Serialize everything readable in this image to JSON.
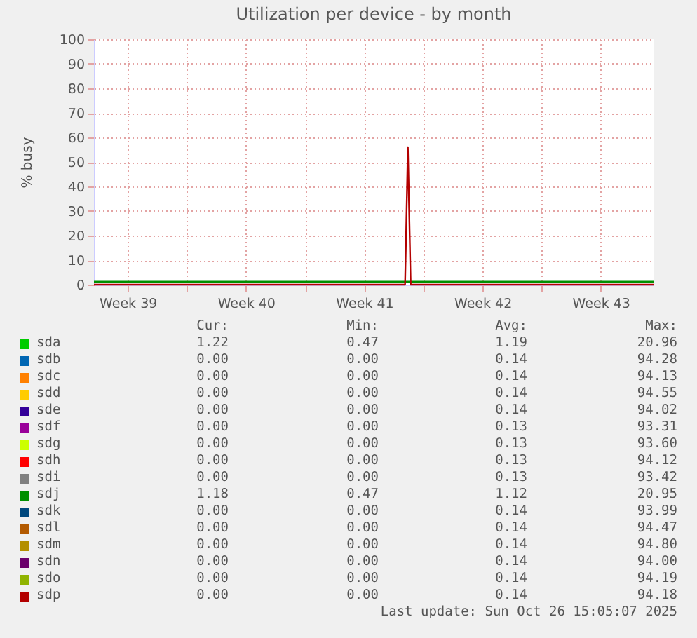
{
  "chart_data": {
    "type": "line",
    "title": "Utilization per device - by month",
    "ylabel": "% busy",
    "x": [
      "2025-09-23T12:00",
      "2025-10-11T22:00",
      "2025-10-12T02:00",
      "2025-10-12T06:00",
      "2025-10-26T15:00"
    ],
    "xlim": [
      "2025-09-23T12:00",
      "2025-10-26T15:00"
    ],
    "xticks": [
      {
        "value": "2025-09-25T12:00",
        "label": "Week 39"
      },
      {
        "value": "2025-09-29T00:00",
        "label": null
      },
      {
        "value": "2025-10-02T12:00",
        "label": "Week 40"
      },
      {
        "value": "2025-10-06T00:00",
        "label": null
      },
      {
        "value": "2025-10-09T12:00",
        "label": "Week 41"
      },
      {
        "value": "2025-10-13T00:00",
        "label": null
      },
      {
        "value": "2025-10-16T12:00",
        "label": "Week 42"
      },
      {
        "value": "2025-10-20T00:00",
        "label": null
      },
      {
        "value": "2025-10-23T12:00",
        "label": "Week 43"
      }
    ],
    "ylim": [
      0,
      100
    ],
    "yticks": [
      0,
      10,
      20,
      30,
      40,
      50,
      60,
      70,
      80,
      90,
      100
    ],
    "grid": true,
    "legend": "bottom",
    "line_style": "solid",
    "series": [
      {
        "name": "sda",
        "color": "#00cc00",
        "values": [
          null,
          null,
          null,
          null,
          null
        ]
      },
      {
        "name": "sdb",
        "color": "#0066b3",
        "values": [
          null,
          null,
          null,
          null,
          null
        ]
      },
      {
        "name": "sdc",
        "color": "#ff8000",
        "values": [
          null,
          null,
          null,
          null,
          null
        ]
      },
      {
        "name": "sdd",
        "color": "#ffcc00",
        "values": [
          null,
          null,
          null,
          null,
          null
        ]
      },
      {
        "name": "sde",
        "color": "#330099",
        "values": [
          null,
          null,
          null,
          null,
          null
        ]
      },
      {
        "name": "sdf",
        "color": "#990099",
        "values": [
          null,
          null,
          null,
          null,
          null
        ]
      },
      {
        "name": "sdg",
        "color": "#ccff00",
        "values": [
          null,
          null,
          null,
          null,
          null
        ]
      },
      {
        "name": "sdh",
        "color": "#ff0000",
        "values": [
          null,
          null,
          null,
          null,
          null
        ]
      },
      {
        "name": "sdi",
        "color": "#808080",
        "values": [
          null,
          null,
          null,
          null,
          null
        ]
      },
      {
        "name": "sdj",
        "color": "#008f00",
        "x": [
          "2025-09-23T12:00",
          "2025-10-26T15:00"
        ],
        "values": [
          1.2,
          1.2
        ]
      },
      {
        "name": "sdk",
        "color": "#00487d",
        "values": [
          null,
          null,
          null,
          null,
          null
        ]
      },
      {
        "name": "sdl",
        "color": "#b35a00",
        "values": [
          null,
          null,
          null,
          null,
          null
        ]
      },
      {
        "name": "sdm",
        "color": "#b38f00",
        "values": [
          null,
          null,
          null,
          null,
          null
        ]
      },
      {
        "name": "sdn",
        "color": "#6b006b",
        "values": [
          null,
          null,
          null,
          null,
          null
        ]
      },
      {
        "name": "sdo",
        "color": "#8fb300",
        "values": [
          null,
          null,
          null,
          null,
          null
        ]
      },
      {
        "name": "sdp",
        "color": "#b30000",
        "values": [
          0,
          0,
          56,
          0,
          0
        ]
      }
    ],
    "annotations": [
      "Cur:",
      "Min:",
      "Avg:",
      "Max:",
      "1.22",
      "0.47",
      "1.19",
      "20.96",
      "0.00",
      "0.00",
      "0.14",
      "94.28",
      "0.00",
      "0.00",
      "0.14",
      "94.13",
      "0.00",
      "0.00",
      "0.14",
      "94.55",
      "0.00",
      "0.00",
      "0.14",
      "94.02",
      "0.00",
      "0.00",
      "0.13",
      "93.31",
      "0.00",
      "0.00",
      "0.13",
      "93.60",
      "0.00",
      "0.00",
      "0.13",
      "94.12",
      "0.00",
      "0.00",
      "0.13",
      "93.42",
      "1.18",
      "0.47",
      "1.12",
      "20.95",
      "0.00",
      "0.00",
      "0.14",
      "93.99",
      "0.00",
      "0.00",
      "0.14",
      "94.47",
      "0.00",
      "0.00",
      "0.14",
      "94.80",
      "0.00",
      "0.00",
      "0.14",
      "94.00",
      "0.00",
      "0.00",
      "0.14",
      "94.19",
      "0.00",
      "0.00",
      "0.14",
      "94.18",
      "Last update: Sun Oct 26 15:05:07 2025"
    ]
  }
}
